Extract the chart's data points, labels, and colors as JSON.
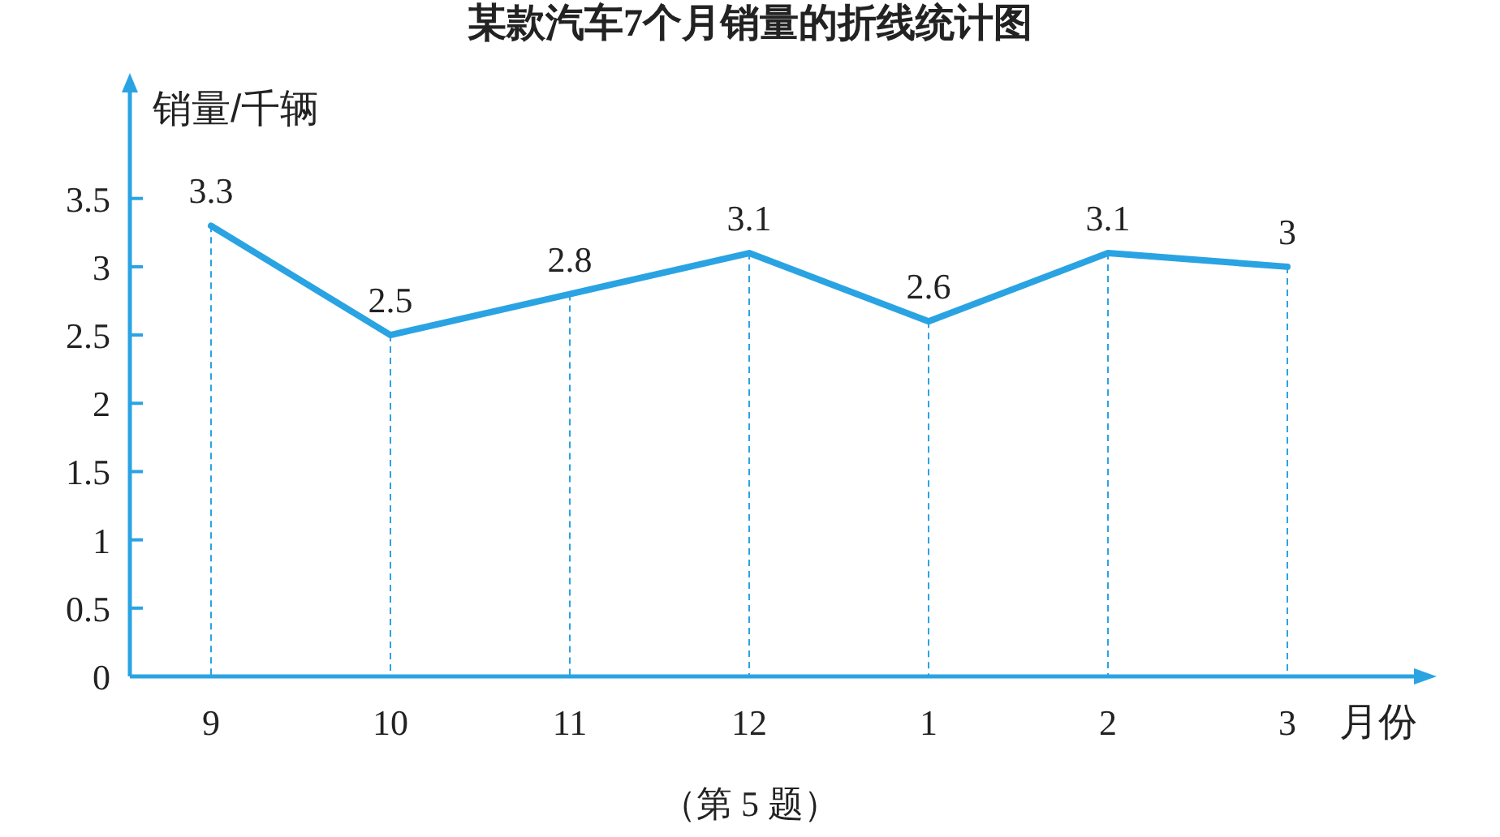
{
  "chart_data": {
    "type": "line",
    "title": "某款汽车7个月销量的折线统计图",
    "xlabel": "月份",
    "ylabel": "销量/千辆",
    "categories": [
      "9",
      "10",
      "11",
      "12",
      "1",
      "2",
      "3"
    ],
    "series": [
      {
        "color": "#2aa3e3",
        "values": [
          3.3,
          2.5,
          2.8,
          3.1,
          2.6,
          3.1,
          3
        ]
      }
    ],
    "ylim": [
      0,
      4.3
    ],
    "yticks": [
      0,
      0.5,
      1,
      1.5,
      2,
      2.5,
      3,
      3.5
    ],
    "data_labels": true,
    "grid": "x",
    "marker": "none",
    "line_style": "solid",
    "annotations": [
      "（第 5 题）"
    ]
  }
}
